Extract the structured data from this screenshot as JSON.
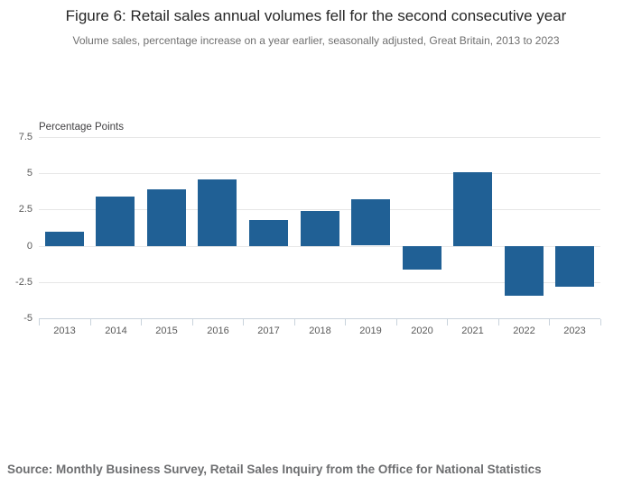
{
  "header": {
    "title": "Figure 6: Retail sales annual volumes fell for the second consecutive year",
    "subtitle": "Volume sales, percentage increase on a year earlier, seasonally adjusted, Great Britain, 2013 to 2023"
  },
  "chart_data": {
    "type": "bar",
    "title": "Figure 6: Retail sales annual volumes fell for the second consecutive year",
    "subtitle": "Volume sales, percentage increase on a year earlier, seasonally adjusted, Great Britain, 2013 to 2023",
    "categories": [
      "2013",
      "2014",
      "2015",
      "2016",
      "2017",
      "2018",
      "2019",
      "2020",
      "2021",
      "2022",
      "2023"
    ],
    "values": [
      1.0,
      3.4,
      3.9,
      4.6,
      1.8,
      2.4,
      3.2,
      -1.6,
      5.1,
      -3.4,
      -2.8
    ],
    "xlabel": "",
    "ylabel": "Percentage Points",
    "ylim": [
      -5,
      7.5
    ],
    "yticks": [
      7.5,
      5,
      2.5,
      0,
      -2.5,
      -5
    ],
    "ytick_labels": [
      "7.5",
      "5",
      "2.5",
      "0",
      "-2.5",
      "-5"
    ],
    "grid": true,
    "legend": false,
    "bar_color": "#206095"
  },
  "footer": {
    "source": "Source: Monthly Business Survey, Retail Sales Inquiry from the Office for National Statistics"
  },
  "colors": {
    "bar": "#206095",
    "gridline": "#e7e7e7",
    "axis": "#c9d3dc",
    "tick_text": "#595959"
  }
}
